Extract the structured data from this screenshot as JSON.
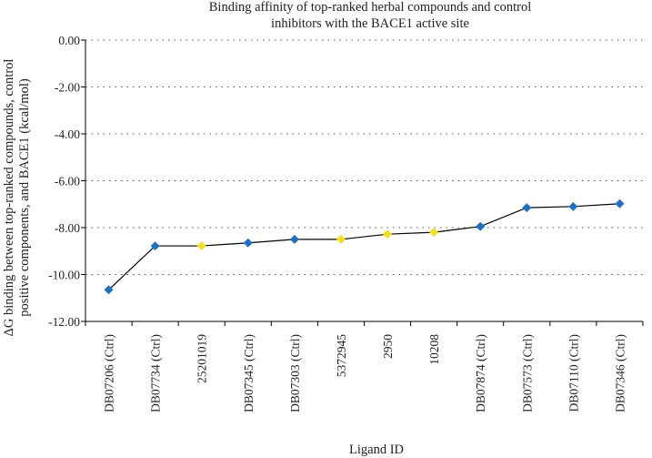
{
  "chart_data": {
    "type": "line",
    "title": [
      "Binding affinity of top-ranked herbal compounds and control",
      "inhibitors with the BACE1 active site"
    ],
    "xlabel": "Ligand ID",
    "ylabel": [
      "ΔG binding between top-ranked compounds, control",
      "positive components, and BACE1 (kcal/mol)"
    ],
    "ylim": [
      -12,
      0
    ],
    "yticks": [
      "0.00",
      "-2.00",
      "-4.00",
      "-6.00",
      "-8.00",
      "-10.00",
      "-12.00"
    ],
    "ytick_values": [
      0,
      -2,
      -4,
      -6,
      -8,
      -10,
      -12
    ],
    "grid": "horizontal dotted",
    "categories": [
      "DB07206 (Ctrl)",
      "DB07734 (Ctrl)",
      "25201019",
      "DB07345 (Ctrl)",
      "DB07303 (Ctrl)",
      "5372945",
      "2950",
      "10208",
      "DB07874 (Ctrl)",
      "DB07573 (Ctrl)",
      "DB07110 (Ctrl)",
      "DB07346 (Ctrl)"
    ],
    "values": [
      -10.65,
      -8.78,
      -8.78,
      -8.65,
      -8.5,
      -8.5,
      -8.28,
      -8.2,
      -7.95,
      -7.15,
      -7.1,
      -6.98
    ],
    "point_colors": [
      "#1f6fc5",
      "#1f6fc5",
      "#f2e01e",
      "#1f6fc5",
      "#1f6fc5",
      "#f2e01e",
      "#f2e01e",
      "#f2e01e",
      "#1f6fc5",
      "#1f6fc5",
      "#1f6fc5",
      "#1f6fc5"
    ],
    "line_color": "#000000"
  }
}
